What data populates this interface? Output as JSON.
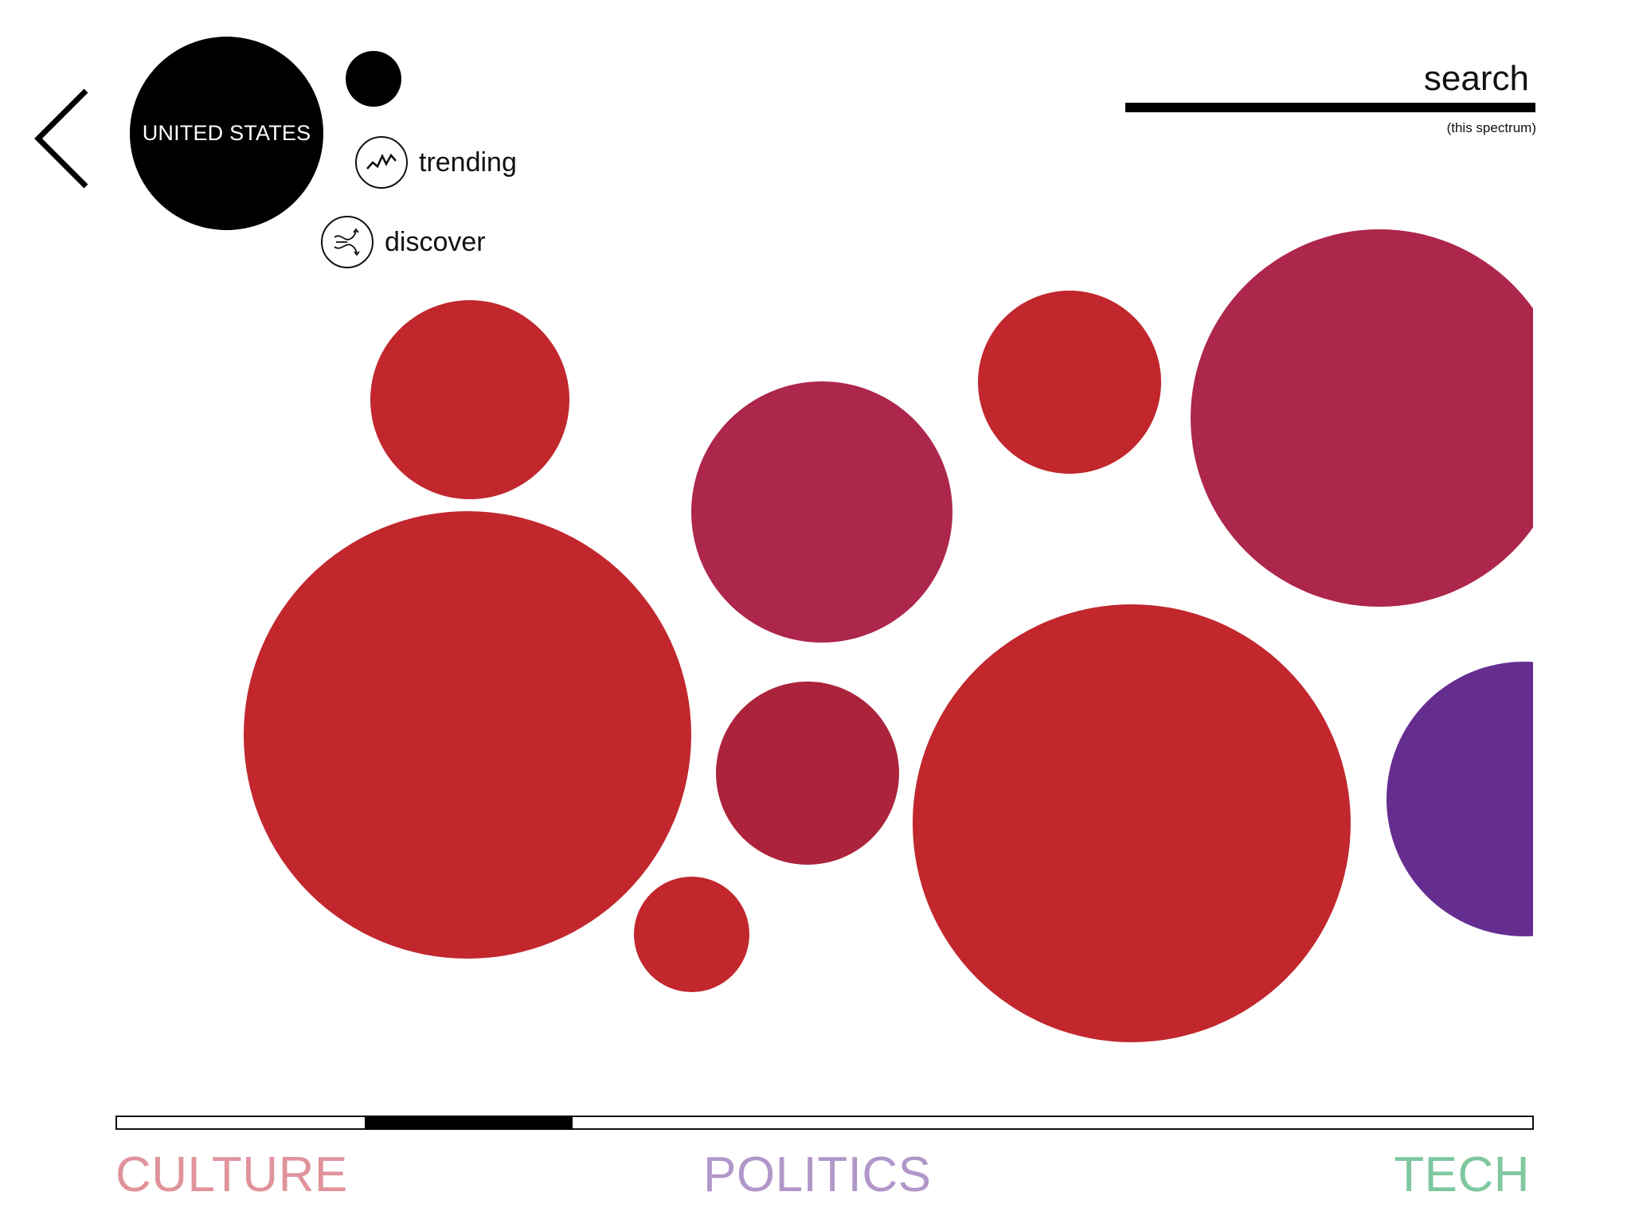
{
  "header": {
    "country_label": "UNITED STATES",
    "menu": [
      {
        "label": "trending",
        "icon": "trending-icon"
      },
      {
        "label": "discover",
        "icon": "discover-icon"
      }
    ],
    "back_icon": "chevron-left-icon"
  },
  "search": {
    "label": "search",
    "value": "",
    "caption": "(this spectrum)"
  },
  "colors": {
    "red": "#c1272d",
    "magenta": "#ad264b",
    "crimson": "#ab243c",
    "purple": "#662d91",
    "culture": "#e0939b",
    "politics": "#b197c9",
    "tech": "#7ec79f"
  },
  "spectrum": {
    "selection_start": 0.175,
    "selection_end": 0.322,
    "categories": [
      {
        "label": "CULTURE",
        "color": "#e0939b"
      },
      {
        "label": "POLITICS",
        "color": "#b197c9"
      },
      {
        "label": "TECH",
        "color": "#7ec79f"
      }
    ]
  }
}
